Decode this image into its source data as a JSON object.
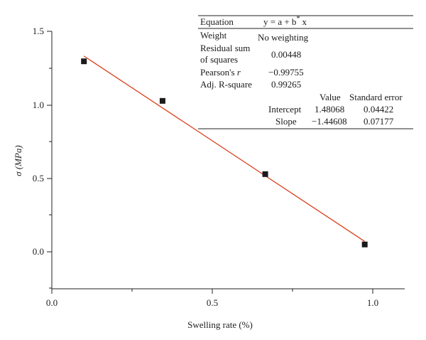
{
  "chart_data": {
    "type": "scatter",
    "xlabel": "Swelling rate (%)",
    "ylabel": "σ (MPa)",
    "xlim": [
      0.0,
      1.1
    ],
    "ylim": [
      -0.25,
      1.5
    ],
    "x_ticks": [
      "0.0",
      "0.5",
      "1.0"
    ],
    "y_ticks": [
      "0.0",
      "0.5",
      "1.0",
      "1.5"
    ],
    "x": [
      0.1,
      0.345,
      0.665,
      0.975
    ],
    "y": [
      1.3,
      1.03,
      0.53,
      0.05
    ],
    "fit": {
      "intercept": 1.48068,
      "slope": -1.44608,
      "x_range": [
        0.1,
        0.975
      ]
    },
    "marker_color": "#1a1a1a",
    "fit_color": "#d9411e",
    "grid": false,
    "stats_table": {
      "equation_label": "Equation",
      "equation": "y = a + b",
      "equation_sup": "*",
      "equation_tail": "x",
      "rows": [
        {
          "label": "Weight",
          "value": "No weighting"
        },
        {
          "label": "Residual sum",
          "label2": "of squares",
          "value": "0.00448"
        },
        {
          "label": "Pearson's ",
          "label_italic": "r",
          "value": "−0.99755"
        },
        {
          "label": "Adj. R-square",
          "value": "0.99265"
        }
      ],
      "columns": [
        "Value",
        "Standard error"
      ],
      "params": [
        {
          "name": "Intercept",
          "value": "1.48068",
          "error": "0.04422"
        },
        {
          "name": "Slope",
          "value": "−1.44608",
          "error": "0.07177"
        }
      ]
    }
  }
}
